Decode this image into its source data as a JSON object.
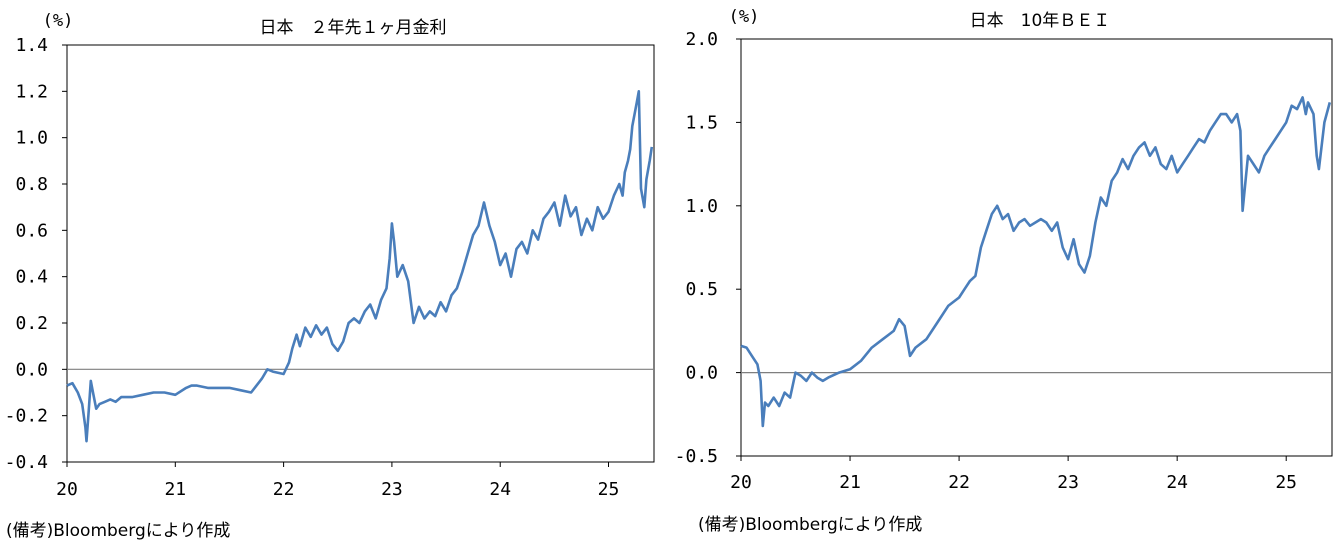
{
  "chart_data": [
    {
      "type": "line",
      "title": "日本　２年先１ヶ月金利",
      "unit_label": "(%)",
      "xlabel": "",
      "ylabel": "",
      "ylim": [
        -0.4,
        1.4
      ],
      "xlim": [
        2020.0,
        2025.42
      ],
      "y_ticks": [
        "1.4",
        "1.2",
        "1.0",
        "0.8",
        "0.6",
        "0.4",
        "0.2",
        "0.0",
        "-0.2",
        "-0.4"
      ],
      "x_ticks": [
        "20",
        "21",
        "22",
        "23",
        "24",
        "25"
      ],
      "grid": false,
      "zero_line": true,
      "series": [
        {
          "color": "#4a7ebb",
          "x": [
            2020.0,
            2020.05,
            2020.1,
            2020.14,
            2020.17,
            2020.18,
            2020.2,
            2020.22,
            2020.24,
            2020.27,
            2020.3,
            2020.35,
            2020.4,
            2020.45,
            2020.5,
            2020.6,
            2020.7,
            2020.8,
            2020.9,
            2021.0,
            2021.1,
            2021.15,
            2021.2,
            2021.3,
            2021.4,
            2021.5,
            2021.6,
            2021.7,
            2021.75,
            2021.8,
            2021.85,
            2021.9,
            2022.0,
            2022.05,
            2022.08,
            2022.12,
            2022.15,
            2022.2,
            2022.25,
            2022.3,
            2022.35,
            2022.4,
            2022.45,
            2022.5,
            2022.55,
            2022.6,
            2022.65,
            2022.7,
            2022.75,
            2022.8,
            2022.85,
            2022.9,
            2022.95,
            2022.98,
            2023.0,
            2023.02,
            2023.05,
            2023.1,
            2023.15,
            2023.2,
            2023.25,
            2023.3,
            2023.35,
            2023.4,
            2023.45,
            2023.5,
            2023.55,
            2023.6,
            2023.65,
            2023.7,
            2023.75,
            2023.8,
            2023.85,
            2023.9,
            2023.95,
            2024.0,
            2024.05,
            2024.1,
            2024.15,
            2024.2,
            2024.25,
            2024.3,
            2024.35,
            2024.4,
            2024.45,
            2024.5,
            2024.55,
            2024.6,
            2024.65,
            2024.7,
            2024.75,
            2024.8,
            2024.85,
            2024.9,
            2024.95,
            2025.0,
            2025.05,
            2025.1,
            2025.13,
            2025.15,
            2025.18,
            2025.2,
            2025.22,
            2025.24,
            2025.26,
            2025.28,
            2025.3,
            2025.33,
            2025.35,
            2025.38,
            2025.4
          ],
          "y": [
            -0.07,
            -0.06,
            -0.1,
            -0.15,
            -0.25,
            -0.31,
            -0.18,
            -0.05,
            -0.1,
            -0.17,
            -0.15,
            -0.14,
            -0.13,
            -0.14,
            -0.12,
            -0.12,
            -0.11,
            -0.1,
            -0.1,
            -0.11,
            -0.08,
            -0.07,
            -0.07,
            -0.08,
            -0.08,
            -0.08,
            -0.09,
            -0.1,
            -0.07,
            -0.04,
            0.0,
            -0.01,
            -0.02,
            0.03,
            0.09,
            0.15,
            0.1,
            0.18,
            0.14,
            0.19,
            0.15,
            0.18,
            0.11,
            0.08,
            0.12,
            0.2,
            0.22,
            0.2,
            0.25,
            0.28,
            0.22,
            0.3,
            0.35,
            0.48,
            0.63,
            0.55,
            0.4,
            0.45,
            0.38,
            0.2,
            0.27,
            0.22,
            0.25,
            0.23,
            0.29,
            0.25,
            0.32,
            0.35,
            0.42,
            0.5,
            0.58,
            0.62,
            0.72,
            0.62,
            0.55,
            0.45,
            0.5,
            0.4,
            0.52,
            0.55,
            0.5,
            0.6,
            0.56,
            0.65,
            0.68,
            0.72,
            0.62,
            0.75,
            0.66,
            0.7,
            0.58,
            0.65,
            0.6,
            0.7,
            0.65,
            0.68,
            0.75,
            0.8,
            0.75,
            0.85,
            0.9,
            0.95,
            1.05,
            1.1,
            1.15,
            1.2,
            0.78,
            0.7,
            0.82,
            0.9,
            0.96
          ]
        }
      ]
    },
    {
      "type": "line",
      "title": "日本　10年ＢＥＩ",
      "unit_label": "(%)",
      "xlabel": "",
      "ylabel": "",
      "ylim": [
        -0.5,
        2.0
      ],
      "xlim": [
        2020.0,
        2025.42
      ],
      "y_ticks": [
        "2.0",
        "1.5",
        "1.0",
        "0.5",
        "0.0",
        "-0.5"
      ],
      "x_ticks": [
        "20",
        "21",
        "22",
        "23",
        "24",
        "25"
      ],
      "grid": false,
      "zero_line": true,
      "series": [
        {
          "color": "#4a7ebb",
          "x": [
            2020.0,
            2020.05,
            2020.1,
            2020.15,
            2020.18,
            2020.2,
            2020.22,
            2020.25,
            2020.3,
            2020.35,
            2020.4,
            2020.45,
            2020.5,
            2020.55,
            2020.6,
            2020.65,
            2020.7,
            2020.75,
            2020.8,
            2020.9,
            2021.0,
            2021.1,
            2021.2,
            2021.3,
            2021.4,
            2021.45,
            2021.5,
            2021.55,
            2021.6,
            2021.7,
            2021.8,
            2021.9,
            2022.0,
            2022.05,
            2022.1,
            2022.15,
            2022.2,
            2022.25,
            2022.3,
            2022.35,
            2022.4,
            2022.45,
            2022.5,
            2022.55,
            2022.6,
            2022.65,
            2022.7,
            2022.75,
            2022.8,
            2022.85,
            2022.9,
            2022.95,
            2023.0,
            2023.05,
            2023.1,
            2023.15,
            2023.2,
            2023.25,
            2023.3,
            2023.35,
            2023.4,
            2023.45,
            2023.5,
            2023.55,
            2023.6,
            2023.65,
            2023.7,
            2023.75,
            2023.8,
            2023.85,
            2023.9,
            2023.95,
            2024.0,
            2024.05,
            2024.1,
            2024.15,
            2024.2,
            2024.25,
            2024.3,
            2024.35,
            2024.4,
            2024.45,
            2024.5,
            2024.55,
            2024.58,
            2024.6,
            2024.65,
            2024.7,
            2024.75,
            2024.8,
            2024.85,
            2024.9,
            2024.95,
            2025.0,
            2025.05,
            2025.1,
            2025.15,
            2025.18,
            2025.2,
            2025.25,
            2025.28,
            2025.3,
            2025.35,
            2025.4
          ],
          "y": [
            0.16,
            0.15,
            0.1,
            0.05,
            -0.05,
            -0.32,
            -0.18,
            -0.2,
            -0.15,
            -0.2,
            -0.12,
            -0.15,
            0.0,
            -0.02,
            -0.05,
            0.0,
            -0.03,
            -0.05,
            -0.03,
            0.0,
            0.02,
            0.07,
            0.15,
            0.2,
            0.25,
            0.32,
            0.28,
            0.1,
            0.15,
            0.2,
            0.3,
            0.4,
            0.45,
            0.5,
            0.55,
            0.58,
            0.75,
            0.85,
            0.95,
            1.0,
            0.92,
            0.95,
            0.85,
            0.9,
            0.92,
            0.88,
            0.9,
            0.92,
            0.9,
            0.85,
            0.9,
            0.75,
            0.68,
            0.8,
            0.65,
            0.6,
            0.7,
            0.9,
            1.05,
            1.0,
            1.15,
            1.2,
            1.28,
            1.22,
            1.3,
            1.35,
            1.38,
            1.3,
            1.35,
            1.25,
            1.22,
            1.3,
            1.2,
            1.25,
            1.3,
            1.35,
            1.4,
            1.38,
            1.45,
            1.5,
            1.55,
            1.55,
            1.5,
            1.55,
            1.45,
            0.97,
            1.3,
            1.25,
            1.2,
            1.3,
            1.35,
            1.4,
            1.45,
            1.5,
            1.6,
            1.58,
            1.65,
            1.55,
            1.62,
            1.55,
            1.3,
            1.22,
            1.5,
            1.62
          ]
        }
      ]
    }
  ],
  "captions": {
    "left": "(備考)Bloombergにより作成",
    "right": "(備考)Bloombergにより作成"
  },
  "colors": {
    "series_line": "#4a7ebb",
    "axis": "#7f7f7f",
    "frame": "#000000"
  }
}
